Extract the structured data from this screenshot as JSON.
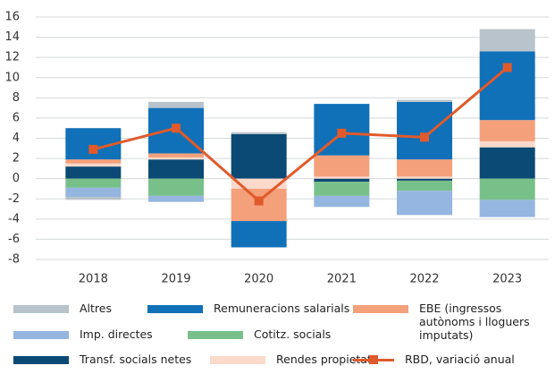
{
  "chart_data": {
    "type": "stacked-bar",
    "categories": [
      "2018",
      "2019",
      "2020",
      "2021",
      "2022",
      "2023"
    ],
    "ylim": [
      -8,
      16
    ],
    "yticks": [
      -8,
      -6,
      -4,
      -2,
      0,
      2,
      4,
      6,
      8,
      10,
      12,
      14,
      16
    ],
    "grid": true,
    "series": [
      {
        "name": "Transf. socials netes",
        "color": "#0b4a74",
        "values": [
          1.2,
          1.9,
          4.4,
          -0.3,
          -0.2,
          3.1
        ]
      },
      {
        "name": "Rendes propietat",
        "color": "#fbd9cb",
        "values": [
          0.3,
          0.2,
          -1.0,
          0.2,
          0.2,
          0.6
        ]
      },
      {
        "name": "EBE (ingressos autònoms i lloguers imputats)",
        "color": "#f4a07a",
        "values": [
          0.4,
          0.4,
          -3.2,
          2.1,
          1.7,
          2.1
        ]
      },
      {
        "name": "Remuneracions salarials",
        "color": "#1070b8",
        "values": [
          3.1,
          4.5,
          -2.6,
          5.1,
          5.7,
          6.8
        ]
      },
      {
        "name": "Cotitz. socials",
        "color": "#78c08a",
        "values": [
          -0.9,
          -1.7,
          0,
          -1.4,
          -1.0,
          -2.1
        ]
      },
      {
        "name": "Imp. directes",
        "color": "#94b6e0",
        "values": [
          -0.9,
          -0.6,
          0,
          -1.1,
          -2.4,
          -1.7
        ]
      },
      {
        "name": "Altres",
        "color": "#b8c3cb",
        "values": [
          -0.3,
          0.6,
          0.2,
          0,
          0.2,
          2.2
        ]
      },
      {
        "name": "RBD, variació anual",
        "type": "line",
        "color": "#e05a2b",
        "values": [
          2.9,
          5.0,
          -2.2,
          4.5,
          4.1,
          11.0
        ]
      }
    ]
  }
}
